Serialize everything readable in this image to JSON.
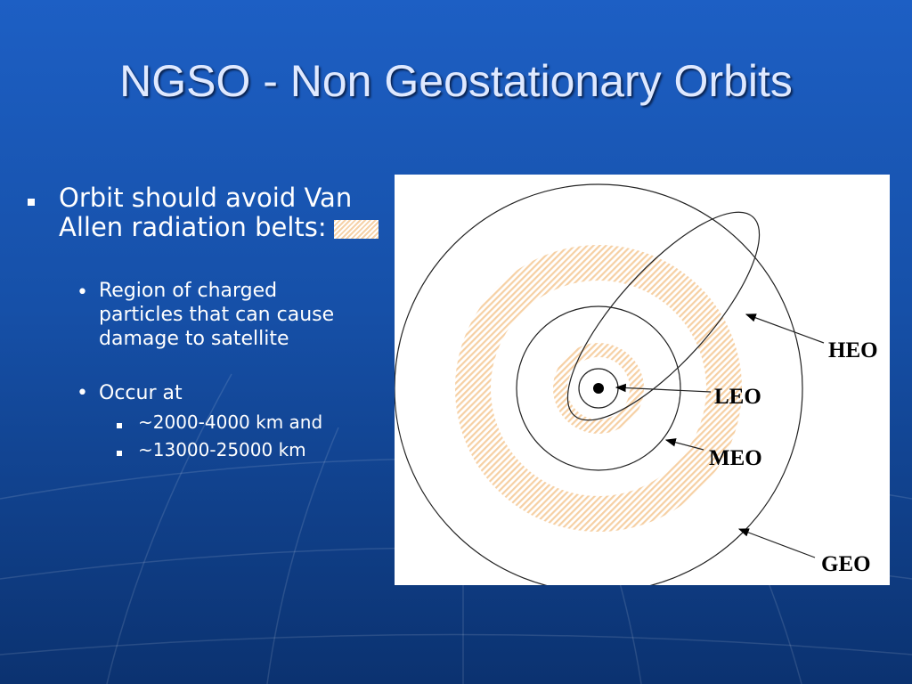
{
  "title": "NGSO - Non Geostationary Orbits",
  "bullets": [
    {
      "text": "Orbit should avoid Van Allen radiation belts:",
      "children": [
        {
          "text": "Region of charged particles that can cause damage to satellite",
          "children": []
        },
        {
          "text": "Occur at",
          "children": [
            {
              "text": "~2000-4000 km and"
            },
            {
              "text": "~13000-25000 km"
            }
          ]
        }
      ]
    }
  ],
  "diagram": {
    "labels": [
      "HEO",
      "LEO",
      "MEO",
      "GEO"
    ]
  }
}
